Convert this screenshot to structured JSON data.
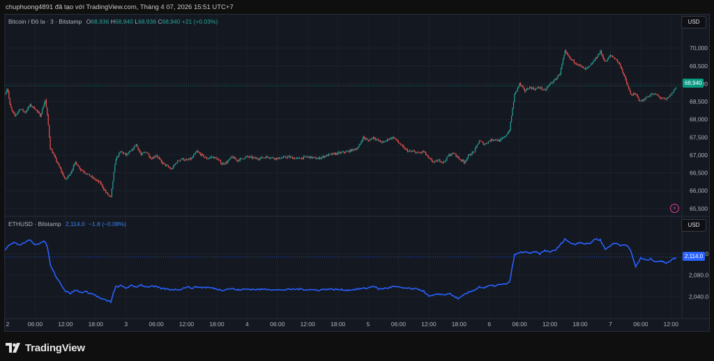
{
  "header": {
    "attribution": "chuphuong4891 đã tạo với TradingView.com, Tháng 4 07, 2026 15:51 UTC+7"
  },
  "brand": {
    "name": "TradingView",
    "icon": "tradingview-logo-icon"
  },
  "panes": {
    "btc": {
      "symbol": "Bitcoin / Đô la · 3 · Bitstamp",
      "o_label": "O",
      "o": "68,936",
      "h_label": "H",
      "h": "68,940",
      "l_label": "L",
      "l": "68,936",
      "c_label": "C",
      "c": "68,940",
      "change": "+21 (+0.03%)",
      "currency": "USD",
      "last_price": "68,940",
      "up_color": "#26a69a",
      "down_color": "#ef5350",
      "icon": "lightning-icon"
    },
    "eth": {
      "symbol": "ETHUSD · Bitstamp",
      "last": "2,114.0",
      "change": "−1.8 (−0.08%)",
      "currency": "USD",
      "last_price": "2,114.0",
      "line_color": "#2962ff"
    }
  },
  "chart_data": [
    {
      "type": "candlestick",
      "title": "Bitcoin / Đô la · 3 · Bitstamp",
      "y_ticks": [
        65500,
        66000,
        66500,
        67000,
        67500,
        68000,
        68500,
        69000,
        69500,
        70000
      ],
      "ylim": [
        65300,
        70550
      ],
      "x_ticks": [
        "2",
        "06:00",
        "12:00",
        "18:00",
        "3",
        "06:00",
        "12:00",
        "18:00",
        "4",
        "06:00",
        "12:00",
        "18:00",
        "5",
        "06:00",
        "12:00",
        "18:00",
        "6",
        "06:00",
        "12:00",
        "18:00",
        "7",
        "06:00",
        "12:00"
      ],
      "x_unit": "hours since Apr 2 00:00 (UTC+7)",
      "x_range": [
        0,
        133.2
      ],
      "price_path": [
        [
          0,
          68700
        ],
        [
          0.5,
          68900
        ],
        [
          1,
          68400
        ],
        [
          1.5,
          68200
        ],
        [
          2,
          68100
        ],
        [
          3,
          68300
        ],
        [
          4,
          68200
        ],
        [
          5,
          68400
        ],
        [
          6,
          68300
        ],
        [
          7,
          68100
        ],
        [
          8,
          68550
        ],
        [
          8.5,
          68000
        ],
        [
          9,
          67200
        ],
        [
          10,
          66900
        ],
        [
          11,
          66600
        ],
        [
          12,
          66300
        ],
        [
          13,
          66500
        ],
        [
          14,
          66800
        ],
        [
          15,
          66600
        ],
        [
          16,
          66500
        ],
        [
          17,
          66400
        ],
        [
          18,
          66300
        ],
        [
          19,
          66200
        ],
        [
          20,
          65950
        ],
        [
          21,
          65800
        ],
        [
          21.5,
          66400
        ],
        [
          22,
          66900
        ],
        [
          23,
          67100
        ],
        [
          24,
          67000
        ],
        [
          25,
          67100
        ],
        [
          26,
          67300
        ],
        [
          27,
          67000
        ],
        [
          28,
          67100
        ],
        [
          29,
          66900
        ],
        [
          30,
          67000
        ],
        [
          31,
          66800
        ],
        [
          32,
          66700
        ],
        [
          33,
          66600
        ],
        [
          34,
          66800
        ],
        [
          35,
          66900
        ],
        [
          36,
          66850
        ],
        [
          37,
          66900
        ],
        [
          38,
          67100
        ],
        [
          39,
          67000
        ],
        [
          40,
          66900
        ],
        [
          41,
          66950
        ],
        [
          42,
          66900
        ],
        [
          43,
          66750
        ],
        [
          44,
          66800
        ],
        [
          45,
          66950
        ],
        [
          46,
          66850
        ],
        [
          47,
          66900
        ],
        [
          48,
          66950
        ],
        [
          50,
          66900
        ],
        [
          52,
          66950
        ],
        [
          54,
          66900
        ],
        [
          56,
          66950
        ],
        [
          58,
          66900
        ],
        [
          60,
          66950
        ],
        [
          62,
          66900
        ],
        [
          64,
          67000
        ],
        [
          66,
          67050
        ],
        [
          68,
          67100
        ],
        [
          70,
          67200
        ],
        [
          71,
          67500
        ],
        [
          72,
          67400
        ],
        [
          73,
          67500
        ],
        [
          74,
          67400
        ],
        [
          75,
          67350
        ],
        [
          76,
          67450
        ],
        [
          77,
          67500
        ],
        [
          78,
          67350
        ],
        [
          79,
          67200
        ],
        [
          80,
          67100
        ],
        [
          81,
          67100
        ],
        [
          82,
          67050
        ],
        [
          83,
          67100
        ],
        [
          84,
          66900
        ],
        [
          85,
          66800
        ],
        [
          86,
          66850
        ],
        [
          87,
          66800
        ],
        [
          88,
          67000
        ],
        [
          89,
          67050
        ],
        [
          90,
          66900
        ],
        [
          91,
          66800
        ],
        [
          92,
          67000
        ],
        [
          93,
          67100
        ],
        [
          94,
          67400
        ],
        [
          95,
          67300
        ],
        [
          96,
          67400
        ],
        [
          97,
          67450
        ],
        [
          98,
          67400
        ],
        [
          99,
          67500
        ],
        [
          100,
          67700
        ],
        [
          101,
          68700
        ],
        [
          102,
          69000
        ],
        [
          103,
          68800
        ],
        [
          104,
          68900
        ],
        [
          105,
          68850
        ],
        [
          106,
          68900
        ],
        [
          107,
          68800
        ],
        [
          108,
          69000
        ],
        [
          109,
          69100
        ],
        [
          110,
          69300
        ],
        [
          111,
          69900
        ],
        [
          112,
          69700
        ],
        [
          113,
          69600
        ],
        [
          114,
          69500
        ],
        [
          115,
          69400
        ],
        [
          116,
          69500
        ],
        [
          117,
          69700
        ],
        [
          118,
          69900
        ],
        [
          119,
          69600
        ],
        [
          120,
          69800
        ],
        [
          121,
          69700
        ],
        [
          122,
          69500
        ],
        [
          123,
          69100
        ],
        [
          124,
          68700
        ],
        [
          125,
          68700
        ],
        [
          126,
          68500
        ],
        [
          127,
          68600
        ],
        [
          128,
          68700
        ],
        [
          129,
          68700
        ],
        [
          130,
          68600
        ],
        [
          131,
          68550
        ],
        [
          132,
          68700
        ],
        [
          133.2,
          68940
        ]
      ]
    },
    {
      "type": "line",
      "title": "ETHUSD · Bitstamp",
      "y_ticks": [
        2040,
        2080,
        2120
      ],
      "ylim": [
        2000,
        2168
      ],
      "x_ticks": [
        "2",
        "06:00",
        "12:00",
        "18:00",
        "3",
        "06:00",
        "12:00",
        "18:00",
        "4",
        "06:00",
        "12:00",
        "18:00",
        "5",
        "06:00",
        "12:00",
        "18:00",
        "6",
        "06:00",
        "12:00",
        "18:00",
        "7",
        "06:00",
        "12:00"
      ],
      "x_unit": "hours since Apr 2 00:00 (UTC+7)",
      "x_range": [
        0,
        133.2
      ],
      "series": [
        {
          "name": "ETHUSD · Bitstamp",
          "values": [
            [
              0,
              2128
            ],
            [
              1,
              2138
            ],
            [
              2,
              2141
            ],
            [
              3,
              2136
            ],
            [
              4,
              2142
            ],
            [
              5,
              2145
            ],
            [
              6,
              2138
            ],
            [
              7,
              2140
            ],
            [
              8,
              2143
            ],
            [
              8.5,
              2130
            ],
            [
              9,
              2100
            ],
            [
              10,
              2080
            ],
            [
              11,
              2065
            ],
            [
              12,
              2050
            ],
            [
              13,
              2046
            ],
            [
              14,
              2052
            ],
            [
              15,
              2048
            ],
            [
              16,
              2049
            ],
            [
              17,
              2046
            ],
            [
              18,
              2042
            ],
            [
              19,
              2036
            ],
            [
              20,
              2033
            ],
            [
              21,
              2030
            ],
            [
              21.5,
              2046
            ],
            [
              22,
              2058
            ],
            [
              23,
              2060
            ],
            [
              24,
              2056
            ],
            [
              25,
              2060
            ],
            [
              26,
              2058
            ],
            [
              27,
              2062
            ],
            [
              28,
              2058
            ],
            [
              29,
              2059
            ],
            [
              30,
              2058
            ],
            [
              31,
              2055
            ],
            [
              32,
              2054
            ],
            [
              33,
              2053
            ],
            [
              34,
              2053
            ],
            [
              35,
              2054
            ],
            [
              36,
              2058
            ],
            [
              37,
              2056
            ],
            [
              38,
              2058
            ],
            [
              39,
              2057
            ],
            [
              40,
              2057
            ],
            [
              41,
              2056
            ],
            [
              42,
              2054
            ],
            [
              43,
              2052
            ],
            [
              44,
              2054
            ],
            [
              45,
              2055
            ],
            [
              46,
              2052
            ],
            [
              48,
              2054
            ],
            [
              50,
              2053
            ],
            [
              52,
              2054
            ],
            [
              54,
              2052
            ],
            [
              56,
              2053
            ],
            [
              58,
              2054
            ],
            [
              60,
              2053
            ],
            [
              62,
              2052
            ],
            [
              64,
              2054
            ],
            [
              66,
              2053
            ],
            [
              68,
              2052
            ],
            [
              70,
              2054
            ],
            [
              72,
              2056
            ],
            [
              73,
              2060
            ],
            [
              74,
              2054
            ],
            [
              75,
              2055
            ],
            [
              76,
              2056
            ],
            [
              77,
              2059
            ],
            [
              78,
              2057
            ],
            [
              79,
              2056
            ],
            [
              80,
              2055
            ],
            [
              81,
              2054
            ],
            [
              82,
              2054
            ],
            [
              83,
              2050
            ],
            [
              84,
              2040
            ],
            [
              85,
              2042
            ],
            [
              86,
              2045
            ],
            [
              87,
              2043
            ],
            [
              88,
              2046
            ],
            [
              89,
              2040
            ],
            [
              90,
              2036
            ],
            [
              91,
              2043
            ],
            [
              92,
              2048
            ],
            [
              93,
              2052
            ],
            [
              94,
              2058
            ],
            [
              95,
              2056
            ],
            [
              96,
              2060
            ],
            [
              97,
              2060
            ],
            [
              98,
              2062
            ],
            [
              99,
              2063
            ],
            [
              100,
              2066
            ],
            [
              101,
              2118
            ],
            [
              102,
              2122
            ],
            [
              103,
              2124
            ],
            [
              104,
              2120
            ],
            [
              105,
              2124
            ],
            [
              106,
              2120
            ],
            [
              107,
              2126
            ],
            [
              108,
              2124
            ],
            [
              109,
              2126
            ],
            [
              110,
              2136
            ],
            [
              111,
              2148
            ],
            [
              112,
              2140
            ],
            [
              113,
              2138
            ],
            [
              114,
              2142
            ],
            [
              115,
              2138
            ],
            [
              116,
              2140
            ],
            [
              117,
              2148
            ],
            [
              118,
              2146
            ],
            [
              119,
              2128
            ],
            [
              120,
              2136
            ],
            [
              121,
              2140
            ],
            [
              122,
              2136
            ],
            [
              123,
              2138
            ],
            [
              124,
              2126
            ],
            [
              125,
              2096
            ],
            [
              126,
              2112
            ],
            [
              127,
              2108
            ],
            [
              128,
              2110
            ],
            [
              129,
              2106
            ],
            [
              130,
              2106
            ],
            [
              131,
              2103
            ],
            [
              132,
              2108
            ],
            [
              133.2,
              2114
            ]
          ]
        }
      ]
    }
  ]
}
